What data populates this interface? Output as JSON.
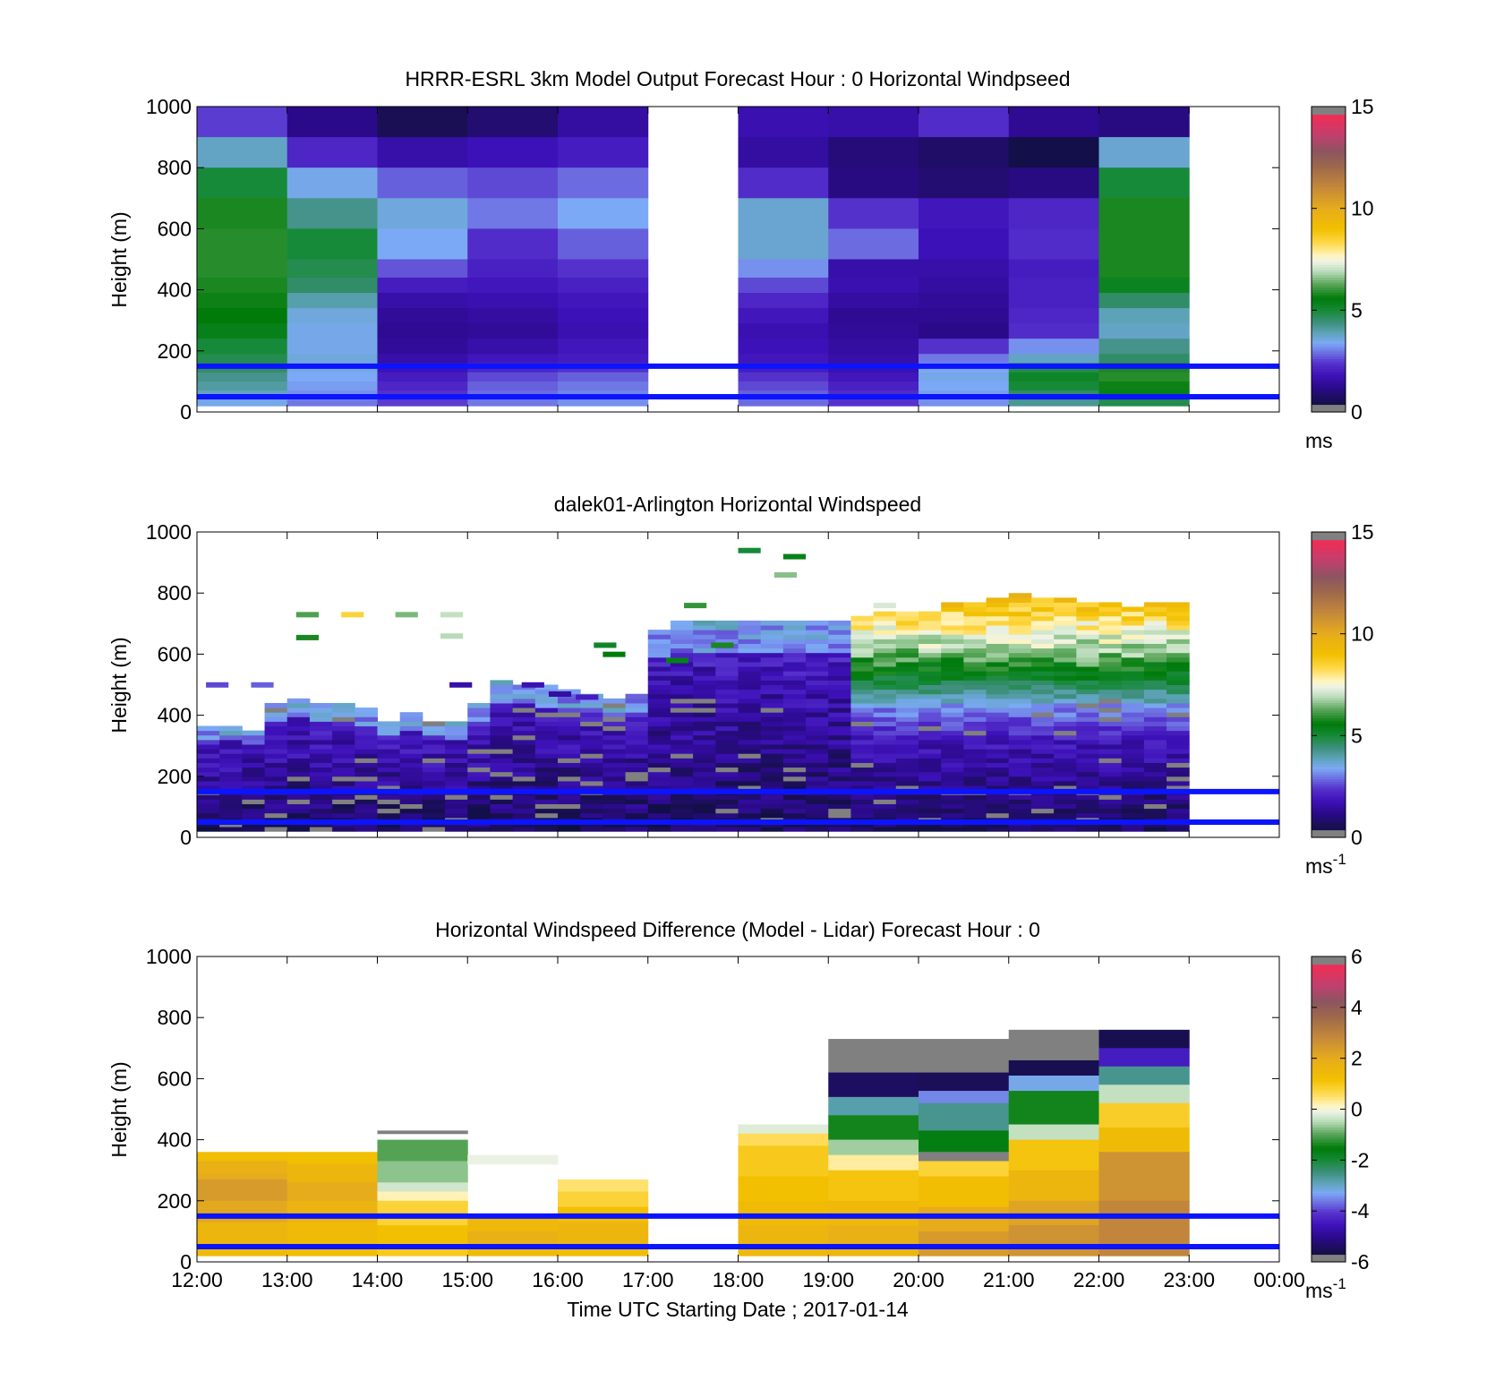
{
  "figure": {
    "xlabel": "Time UTC  Starting Date ; 2017-01-14",
    "x_ticks": [
      "12:00",
      "13:00",
      "14:00",
      "15:00",
      "16:00",
      "17:00",
      "18:00",
      "19:00",
      "20:00",
      "21:00",
      "22:00",
      "23:00",
      "00:00"
    ],
    "overlay_line_color": "#0b14ff",
    "missing_color": "#808080"
  },
  "chart_data": [
    {
      "type": "heatmap",
      "title": "HRRR-ESRL 3km Model Output   Forecast Hour : 0 Horizontal Windpseed",
      "ylabel": "Height (m)",
      "xlim": [
        12,
        24
      ],
      "ylim": [
        0,
        1000
      ],
      "y_ticks": [
        "0",
        "200",
        "400",
        "600",
        "800",
        "1000"
      ],
      "colorbar": {
        "ticks": [
          "0",
          "5",
          "10",
          "15"
        ],
        "range": [
          0,
          15
        ],
        "unit": "ms",
        "unit_sup": ""
      },
      "overlay_lines_height_m": [
        50,
        150
      ],
      "columns_start_hour": [
        12,
        13,
        14,
        15,
        16,
        18,
        19,
        20,
        21,
        22
      ],
      "rows_top_m": [
        1000,
        900,
        800,
        700,
        600,
        500,
        440,
        390,
        340,
        290,
        240,
        190,
        160,
        130,
        100,
        70,
        40
      ],
      "values_ms": [
        [
          2.5,
          1.2,
          0.6,
          0.9,
          1.5,
          1.7,
          1.6,
          2.3,
          1.3,
          1.1
        ],
        [
          3.8,
          2.2,
          1.6,
          1.8,
          2.0,
          1.5,
          1.0,
          0.8,
          0.3,
          3.7
        ],
        [
          5.0,
          3.5,
          2.8,
          2.6,
          2.9,
          2.3,
          1.1,
          0.9,
          1.1,
          5.0
        ],
        [
          5.8,
          4.3,
          3.6,
          3.0,
          3.4,
          3.7,
          2.4,
          1.9,
          2.2,
          5.8
        ],
        [
          5.9,
          5.0,
          3.4,
          2.3,
          2.8,
          3.7,
          2.9,
          1.8,
          2.3,
          5.8
        ],
        [
          5.9,
          4.8,
          2.7,
          2.1,
          2.4,
          3.2,
          1.6,
          1.6,
          2.0,
          5.8
        ],
        [
          5.8,
          4.6,
          2.0,
          1.9,
          2.1,
          2.6,
          1.7,
          1.5,
          2.1,
          5.3
        ],
        [
          5.7,
          4.0,
          1.6,
          1.7,
          1.9,
          2.2,
          1.5,
          1.4,
          2.1,
          4.6
        ],
        [
          5.6,
          3.6,
          1.4,
          1.5,
          1.8,
          1.9,
          1.3,
          1.3,
          2.2,
          3.9
        ],
        [
          5.4,
          3.5,
          1.3,
          1.4,
          1.7,
          1.7,
          1.4,
          1.2,
          2.3,
          3.8
        ],
        [
          5.0,
          3.5,
          1.4,
          1.6,
          1.9,
          1.8,
          1.5,
          2.4,
          3.2,
          4.3
        ],
        [
          4.8,
          3.6,
          1.6,
          1.9,
          2.0,
          1.9,
          1.6,
          3.0,
          3.8,
          4.6
        ],
        [
          4.6,
          3.5,
          1.8,
          2.2,
          2.4,
          2.0,
          1.7,
          3.4,
          4.8,
          5.8
        ],
        [
          4.3,
          3.4,
          2.0,
          2.6,
          2.8,
          2.4,
          1.9,
          3.5,
          5.2,
          5.9
        ],
        [
          4.1,
          3.3,
          2.2,
          2.8,
          3.0,
          2.6,
          2.1,
          3.4,
          5.0,
          5.7
        ],
        [
          3.8,
          3.2,
          2.4,
          2.9,
          3.1,
          2.8,
          2.3,
          3.3,
          4.6,
          5.4
        ],
        [
          3.5,
          3.0,
          2.5,
          3.0,
          3.2,
          2.9,
          2.4,
          3.2,
          4.2,
          4.8
        ]
      ]
    },
    {
      "type": "heatmap",
      "title": "dalek01-Arlington  Horizontal Windspeed",
      "ylabel": "Height (m)",
      "xlim": [
        12,
        24
      ],
      "ylim": [
        0,
        1000
      ],
      "y_ticks": [
        "0",
        "200",
        "400",
        "600",
        "800",
        "1000"
      ],
      "colorbar": {
        "ticks": [
          "0",
          "5",
          "10",
          "15"
        ],
        "range": [
          0,
          15
        ],
        "unit": "ms",
        "unit_sup": "-1"
      },
      "overlay_lines_height_m": [
        50,
        150
      ],
      "time_step_minutes": 15,
      "gate_spacing_m": 15,
      "top_of_valid_data_m": [
        360,
        360,
        350,
        440,
        450,
        440,
        430,
        420,
        380,
        400,
        380,
        370,
        430,
        510,
        500,
        490,
        480,
        470,
        450,
        470,
        680,
        700,
        700,
        700,
        700,
        710,
        700,
        710,
        710,
        720,
        730,
        740,
        740,
        760,
        770,
        780,
        790,
        780,
        780,
        760,
        760,
        750,
        760,
        770
      ],
      "profile_shape": "speed increases with height; low 0-2 ms-1 near surface, 3-6 ms-1 mid-level after 19:00, 7-9 ms-1 near 600-750 m after 19:00"
    },
    {
      "type": "heatmap",
      "title": "Horizontal Windspeed Difference (Model - Lidar) Forecast Hour : 0",
      "ylabel": "Height (m)",
      "xlim": [
        12,
        24
      ],
      "ylim": [
        0,
        1000
      ],
      "y_ticks": [
        "0",
        "200",
        "400",
        "600",
        "800",
        "1000"
      ],
      "colorbar": {
        "ticks": [
          "-6",
          "-4",
          "-2",
          "0",
          "2",
          "4",
          "6"
        ],
        "range": [
          -6,
          6
        ],
        "unit": "ms",
        "unit_sup": "-1"
      },
      "overlay_lines_height_m": [
        50,
        150
      ],
      "columns": [
        {
          "start": 12,
          "segments": [
            [
              360,
              330,
              1.3
            ],
            [
              330,
              290,
              1.8
            ],
            [
              290,
              270,
              2.0
            ],
            [
              270,
              200,
              2.4
            ],
            [
              200,
              130,
              2.1
            ],
            [
              130,
              60,
              1.6
            ],
            [
              60,
              20,
              1.4
            ]
          ]
        },
        {
          "start": 13,
          "segments": [
            [
              360,
              320,
              1.2
            ],
            [
              320,
              260,
              1.6
            ],
            [
              260,
              200,
              2.0
            ],
            [
              200,
              130,
              1.7
            ],
            [
              130,
              60,
              1.4
            ],
            [
              60,
              20,
              1.3
            ]
          ]
        },
        {
          "start": 14,
          "segments": [
            [
              430,
              420,
              6.5
            ],
            [
              400,
              330,
              -1.0
            ],
            [
              330,
              260,
              -0.7
            ],
            [
              260,
              230,
              -0.3
            ],
            [
              230,
              200,
              0.2
            ],
            [
              200,
              120,
              0.8
            ],
            [
              120,
              60,
              1.2
            ],
            [
              60,
              20,
              1.0
            ]
          ]
        },
        {
          "start": 15,
          "segments": [
            [
              350,
              320,
              -0.1
            ],
            [
              150,
              100,
              1.5
            ],
            [
              100,
              60,
              1.8
            ],
            [
              60,
              20,
              1.4
            ]
          ]
        },
        {
          "start": 16,
          "segments": [
            [
              270,
              230,
              0.5
            ],
            [
              230,
              180,
              0.8
            ],
            [
              180,
              130,
              1.2
            ],
            [
              130,
              60,
              1.6
            ],
            [
              60,
              20,
              1.3
            ]
          ]
        },
        {
          "start": 18,
          "segments": [
            [
              450,
              420,
              -0.2
            ],
            [
              420,
              380,
              0.6
            ],
            [
              380,
              280,
              1.0
            ],
            [
              280,
              200,
              1.2
            ],
            [
              200,
              120,
              1.4
            ],
            [
              120,
              60,
              1.6
            ],
            [
              60,
              20,
              1.5
            ]
          ]
        },
        {
          "start": 19,
          "segments": [
            [
              730,
              620,
              6.5
            ],
            [
              620,
              540,
              -5.4
            ],
            [
              540,
              480,
              -2.8
            ],
            [
              480,
              400,
              -1.4
            ],
            [
              400,
              350,
              -0.6
            ],
            [
              350,
              300,
              0.3
            ],
            [
              300,
              200,
              1.1
            ],
            [
              200,
              120,
              1.5
            ],
            [
              120,
              60,
              1.8
            ],
            [
              60,
              20,
              1.6
            ]
          ]
        },
        {
          "start": 20,
          "segments": [
            [
              730,
              620,
              6.5
            ],
            [
              620,
              560,
              -5.5
            ],
            [
              560,
              520,
              -3.5
            ],
            [
              520,
              430,
              -2.6
            ],
            [
              430,
              360,
              -1.6
            ],
            [
              360,
              330,
              6.5
            ],
            [
              330,
              280,
              0.8
            ],
            [
              280,
              180,
              1.3
            ],
            [
              180,
              100,
              2.0
            ],
            [
              100,
              20,
              2.4
            ]
          ]
        },
        {
          "start": 21,
          "segments": [
            [
              760,
              660,
              6.5
            ],
            [
              660,
              610,
              -5.6
            ],
            [
              610,
              560,
              -3.2
            ],
            [
              560,
              450,
              -1.4
            ],
            [
              450,
              400,
              -0.4
            ],
            [
              400,
              300,
              1.1
            ],
            [
              300,
              200,
              1.6
            ],
            [
              200,
              120,
              2.2
            ],
            [
              120,
              20,
              2.6
            ]
          ]
        },
        {
          "start": 22,
          "segments": [
            [
              760,
              700,
              -5.6
            ],
            [
              700,
              640,
              -4.4
            ],
            [
              640,
              580,
              -2.6
            ],
            [
              580,
              520,
              -0.4
            ],
            [
              520,
              440,
              0.9
            ],
            [
              440,
              360,
              1.4
            ],
            [
              360,
              200,
              2.6
            ],
            [
              200,
              20,
              2.9
            ]
          ]
        }
      ]
    }
  ]
}
